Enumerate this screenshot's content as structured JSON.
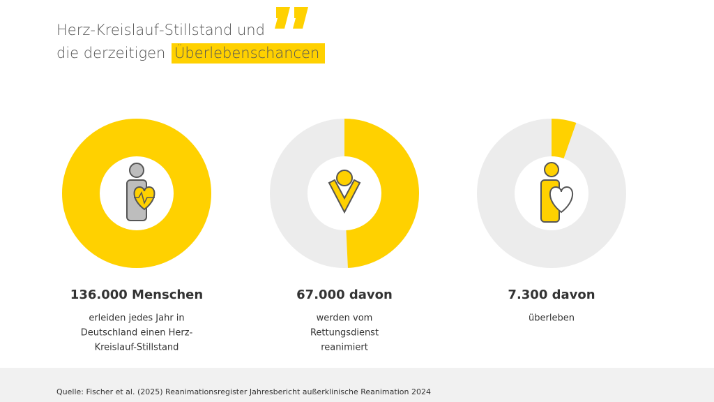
{
  "title": [
    "Herz-Kreislauf-Stillstand und",
    "die derzeitigen",
    "Überlebenschancen"
  ],
  "chart_data": {
    "type": "donut",
    "values": [
      136000,
      67000,
      7300
    ],
    "value_labels": [
      "136.000 Menschen",
      "67.000 davon",
      "7.300 davon"
    ],
    "descriptions": [
      [
        "erleiden jedes Jahr in",
        "Deutschland einen Herz-",
        "Kreislauf-Stillstand"
      ],
      [
        "werden vom",
        "Rettungsdienst",
        "reanimiert"
      ],
      [
        "überleben"
      ]
    ],
    "color": "#ffd100",
    "track_color": "#ececec"
  },
  "source": "Quelle: Fischer et al. (2025) Reanimationsregister Jahresbericht außerklinische Reanimation 2024"
}
